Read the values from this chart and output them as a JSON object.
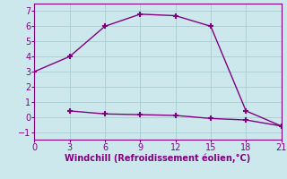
{
  "line1_x": [
    0,
    3,
    6,
    9,
    12,
    15,
    18,
    21
  ],
  "line1_y": [
    3,
    4,
    6,
    6.8,
    6.7,
    6,
    0.4,
    -0.6
  ],
  "line2_x": [
    3,
    6,
    9,
    12,
    15,
    18,
    21
  ],
  "line2_y": [
    0.4,
    0.2,
    0.15,
    0.1,
    -0.1,
    -0.2,
    -0.6
  ],
  "line_color": "#800080",
  "bg_color": "#cce8ec",
  "grid_color": "#aacdd2",
  "xlabel": "Windchill (Refroidissement éolien,°C)",
  "xlim": [
    0,
    21
  ],
  "ylim": [
    -1.5,
    7.5
  ],
  "xticks": [
    0,
    3,
    6,
    9,
    12,
    15,
    18,
    21
  ],
  "yticks": [
    -1,
    0,
    1,
    2,
    3,
    4,
    5,
    6,
    7
  ],
  "xlabel_color": "#800080",
  "marker": "+",
  "markersize": 5,
  "markeredgewidth": 1.5,
  "linewidth": 1.0,
  "tick_labelsize": 7,
  "xlabel_fontsize": 7
}
